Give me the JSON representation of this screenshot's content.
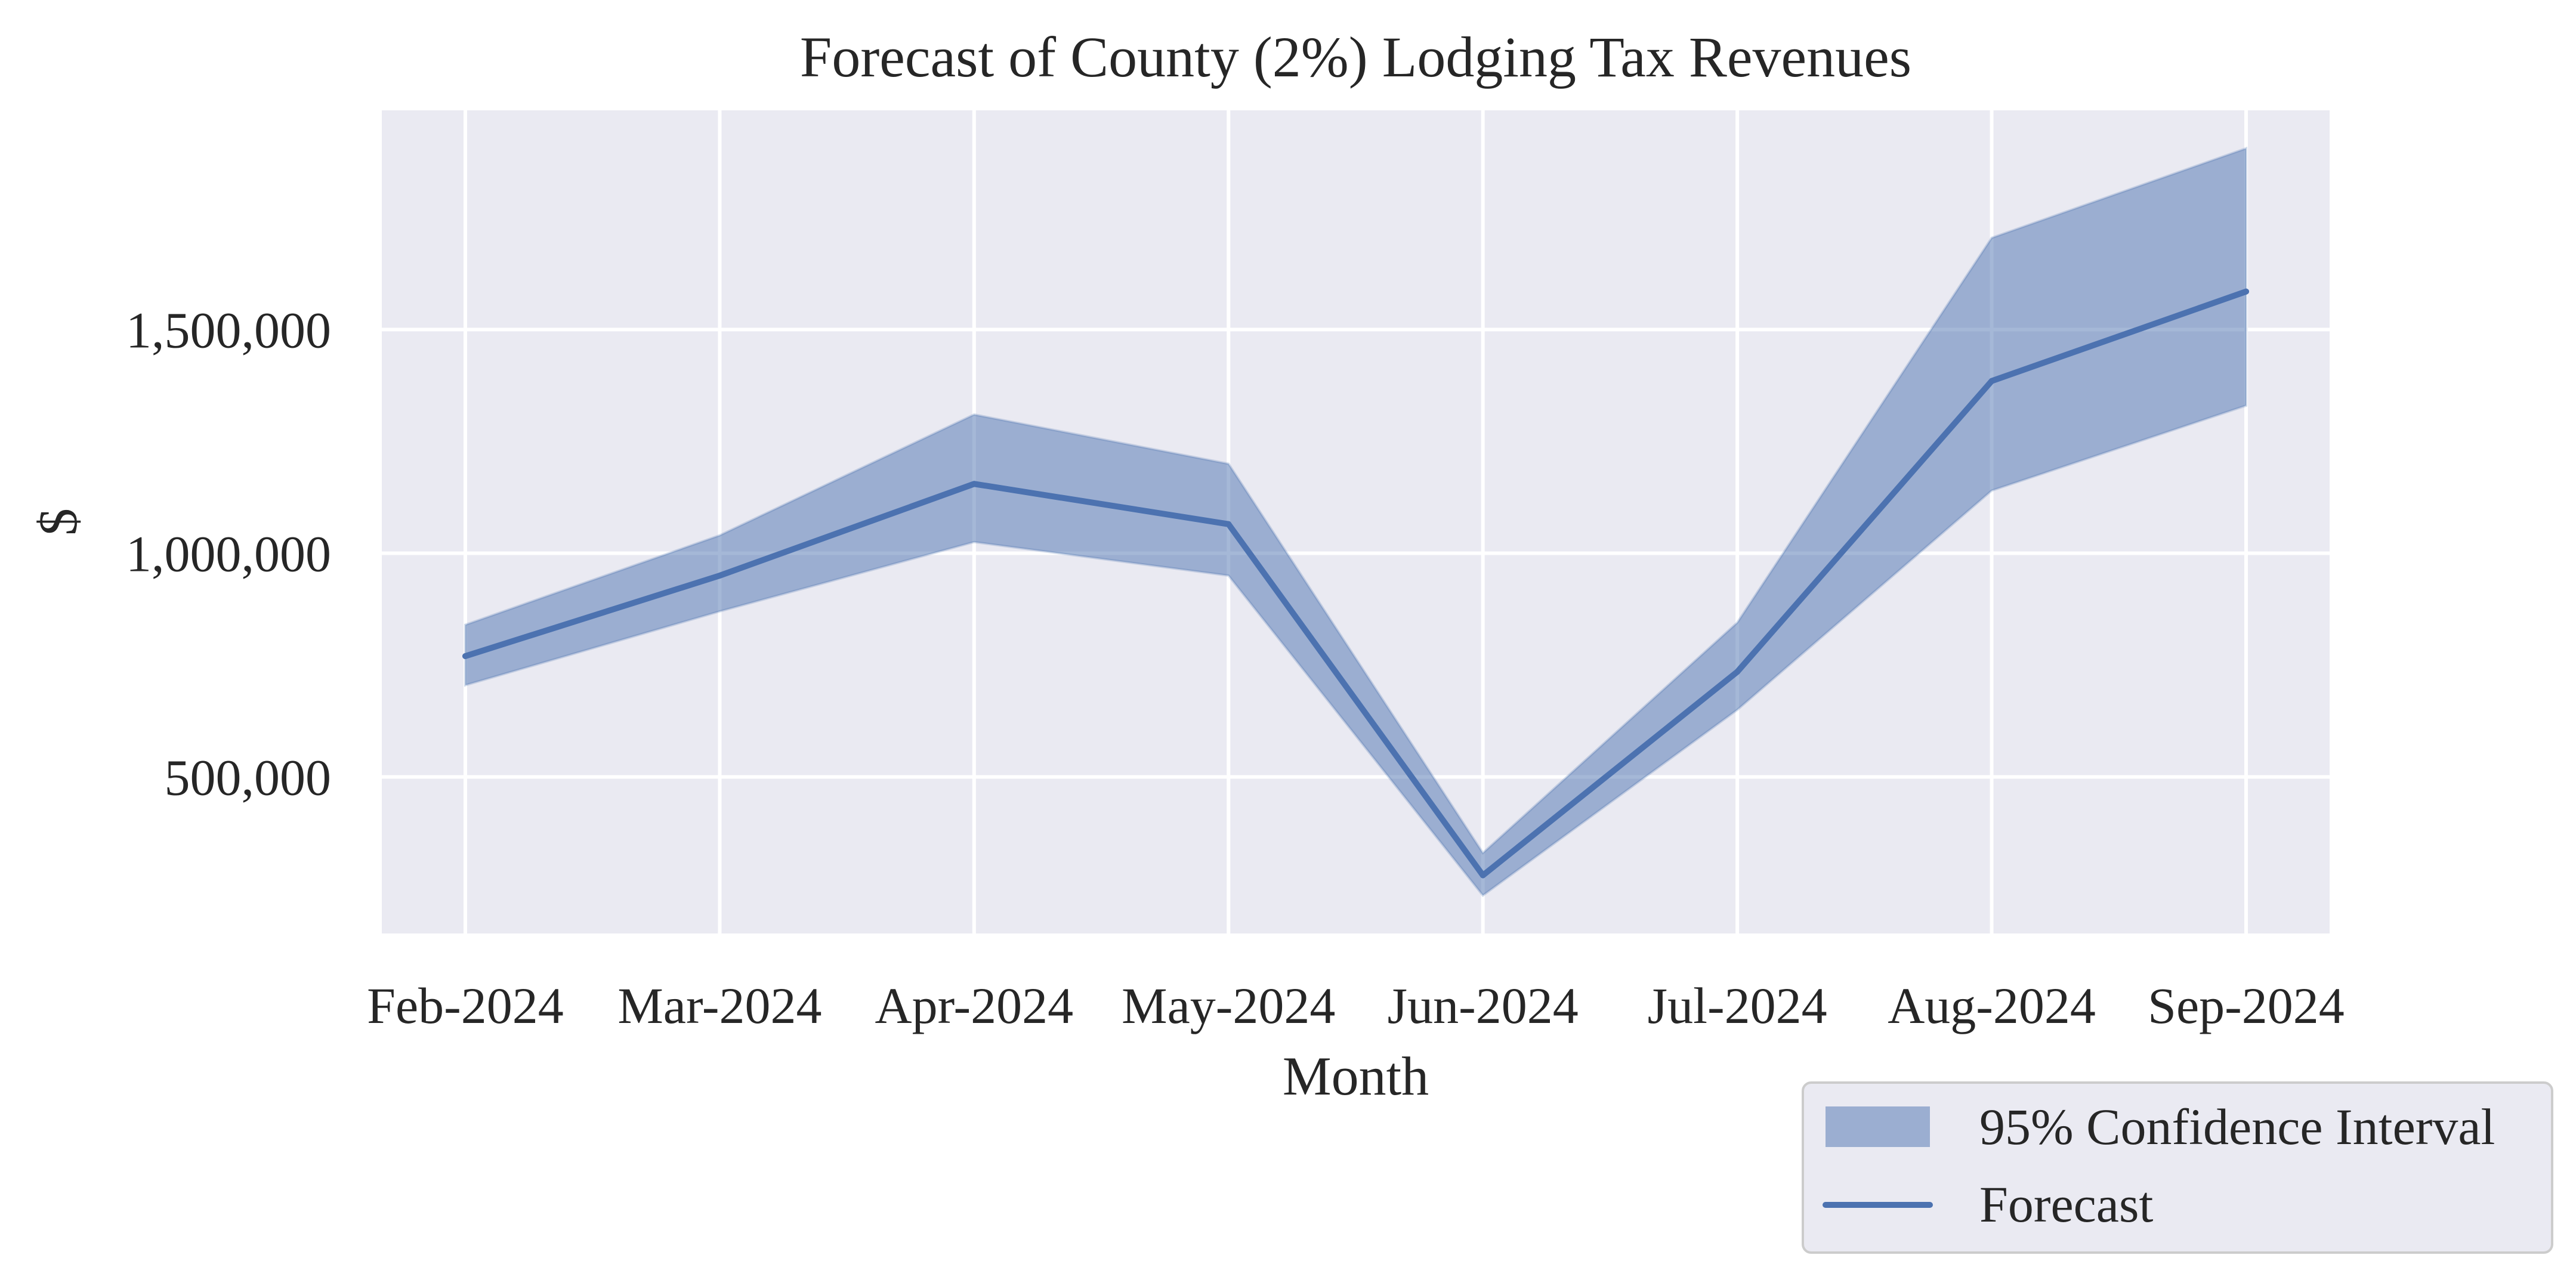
{
  "chart_data": {
    "type": "line",
    "title": "Forecast of County (2%) Lodging Tax Revenues",
    "xlabel": "Month",
    "ylabel": "$",
    "categories": [
      "Feb-2024",
      "Mar-2024",
      "Apr-2024",
      "May-2024",
      "Jun-2024",
      "Jul-2024",
      "Aug-2024",
      "Sep-2024"
    ],
    "ylim": [
      150000,
      1990000
    ],
    "yticks": [
      500000,
      1000000,
      1500000
    ],
    "ytick_labels": [
      "500,000",
      "1,000,000",
      "1,500,000"
    ],
    "grid": true,
    "series": [
      {
        "name": "Forecast",
        "kind": "line",
        "values": [
          770000,
          950000,
          1155000,
          1065000,
          280000,
          735000,
          1385000,
          1585000
        ]
      },
      {
        "name": "95% Confidence Interval",
        "kind": "band",
        "lower": [
          705000,
          870000,
          1025000,
          950000,
          235000,
          650000,
          1140000,
          1330000
        ],
        "upper": [
          840000,
          1040000,
          1310000,
          1200000,
          330000,
          845000,
          1705000,
          1905000
        ]
      }
    ],
    "legend": {
      "position": "lower-right-outside",
      "entries": [
        "95% Confidence Interval",
        "Forecast"
      ]
    },
    "colors": {
      "line": "#4c72b0",
      "band": "#4c72b0",
      "plot_background": "#eaeaf2",
      "grid": "#ffffff"
    }
  }
}
